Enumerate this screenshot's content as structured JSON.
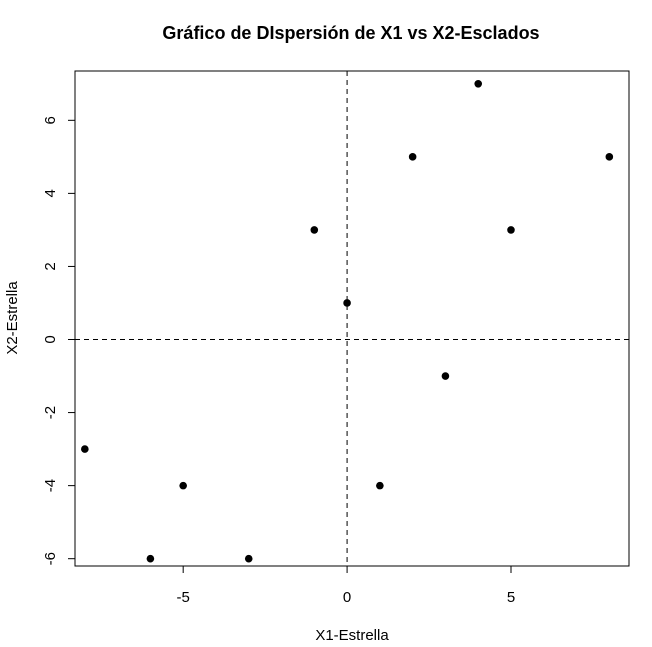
{
  "chart_data": {
    "type": "scatter",
    "title": "Gráfico de DIspersión de X1 vs X2-Esclados",
    "xlabel": "X1-Estrella",
    "ylabel": "X2-Estrella",
    "xlim": [
      -8.3,
      8.6
    ],
    "ylim": [
      -6.2,
      7.35
    ],
    "xticks": [
      -5,
      0,
      5
    ],
    "xtick_labels": [
      "-5",
      "0",
      "5"
    ],
    "yticks": [
      -6,
      -4,
      -2,
      0,
      2,
      4,
      6
    ],
    "ytick_labels": [
      "-6",
      "-4",
      "-2",
      "0",
      "2",
      "4",
      "6"
    ],
    "reference_lines": {
      "x": 0,
      "y": 0,
      "style": "dashed"
    },
    "grid": false,
    "point_color": "#000000",
    "points": [
      {
        "x": -8,
        "y": -3
      },
      {
        "x": -6,
        "y": -6
      },
      {
        "x": -5,
        "y": -4
      },
      {
        "x": -3,
        "y": -6
      },
      {
        "x": -1,
        "y": 3
      },
      {
        "x": 0,
        "y": 1
      },
      {
        "x": 1,
        "y": -4
      },
      {
        "x": 2,
        "y": 5
      },
      {
        "x": 3,
        "y": -1
      },
      {
        "x": 4,
        "y": 7
      },
      {
        "x": 5,
        "y": 3
      },
      {
        "x": 8,
        "y": 5
      }
    ]
  }
}
